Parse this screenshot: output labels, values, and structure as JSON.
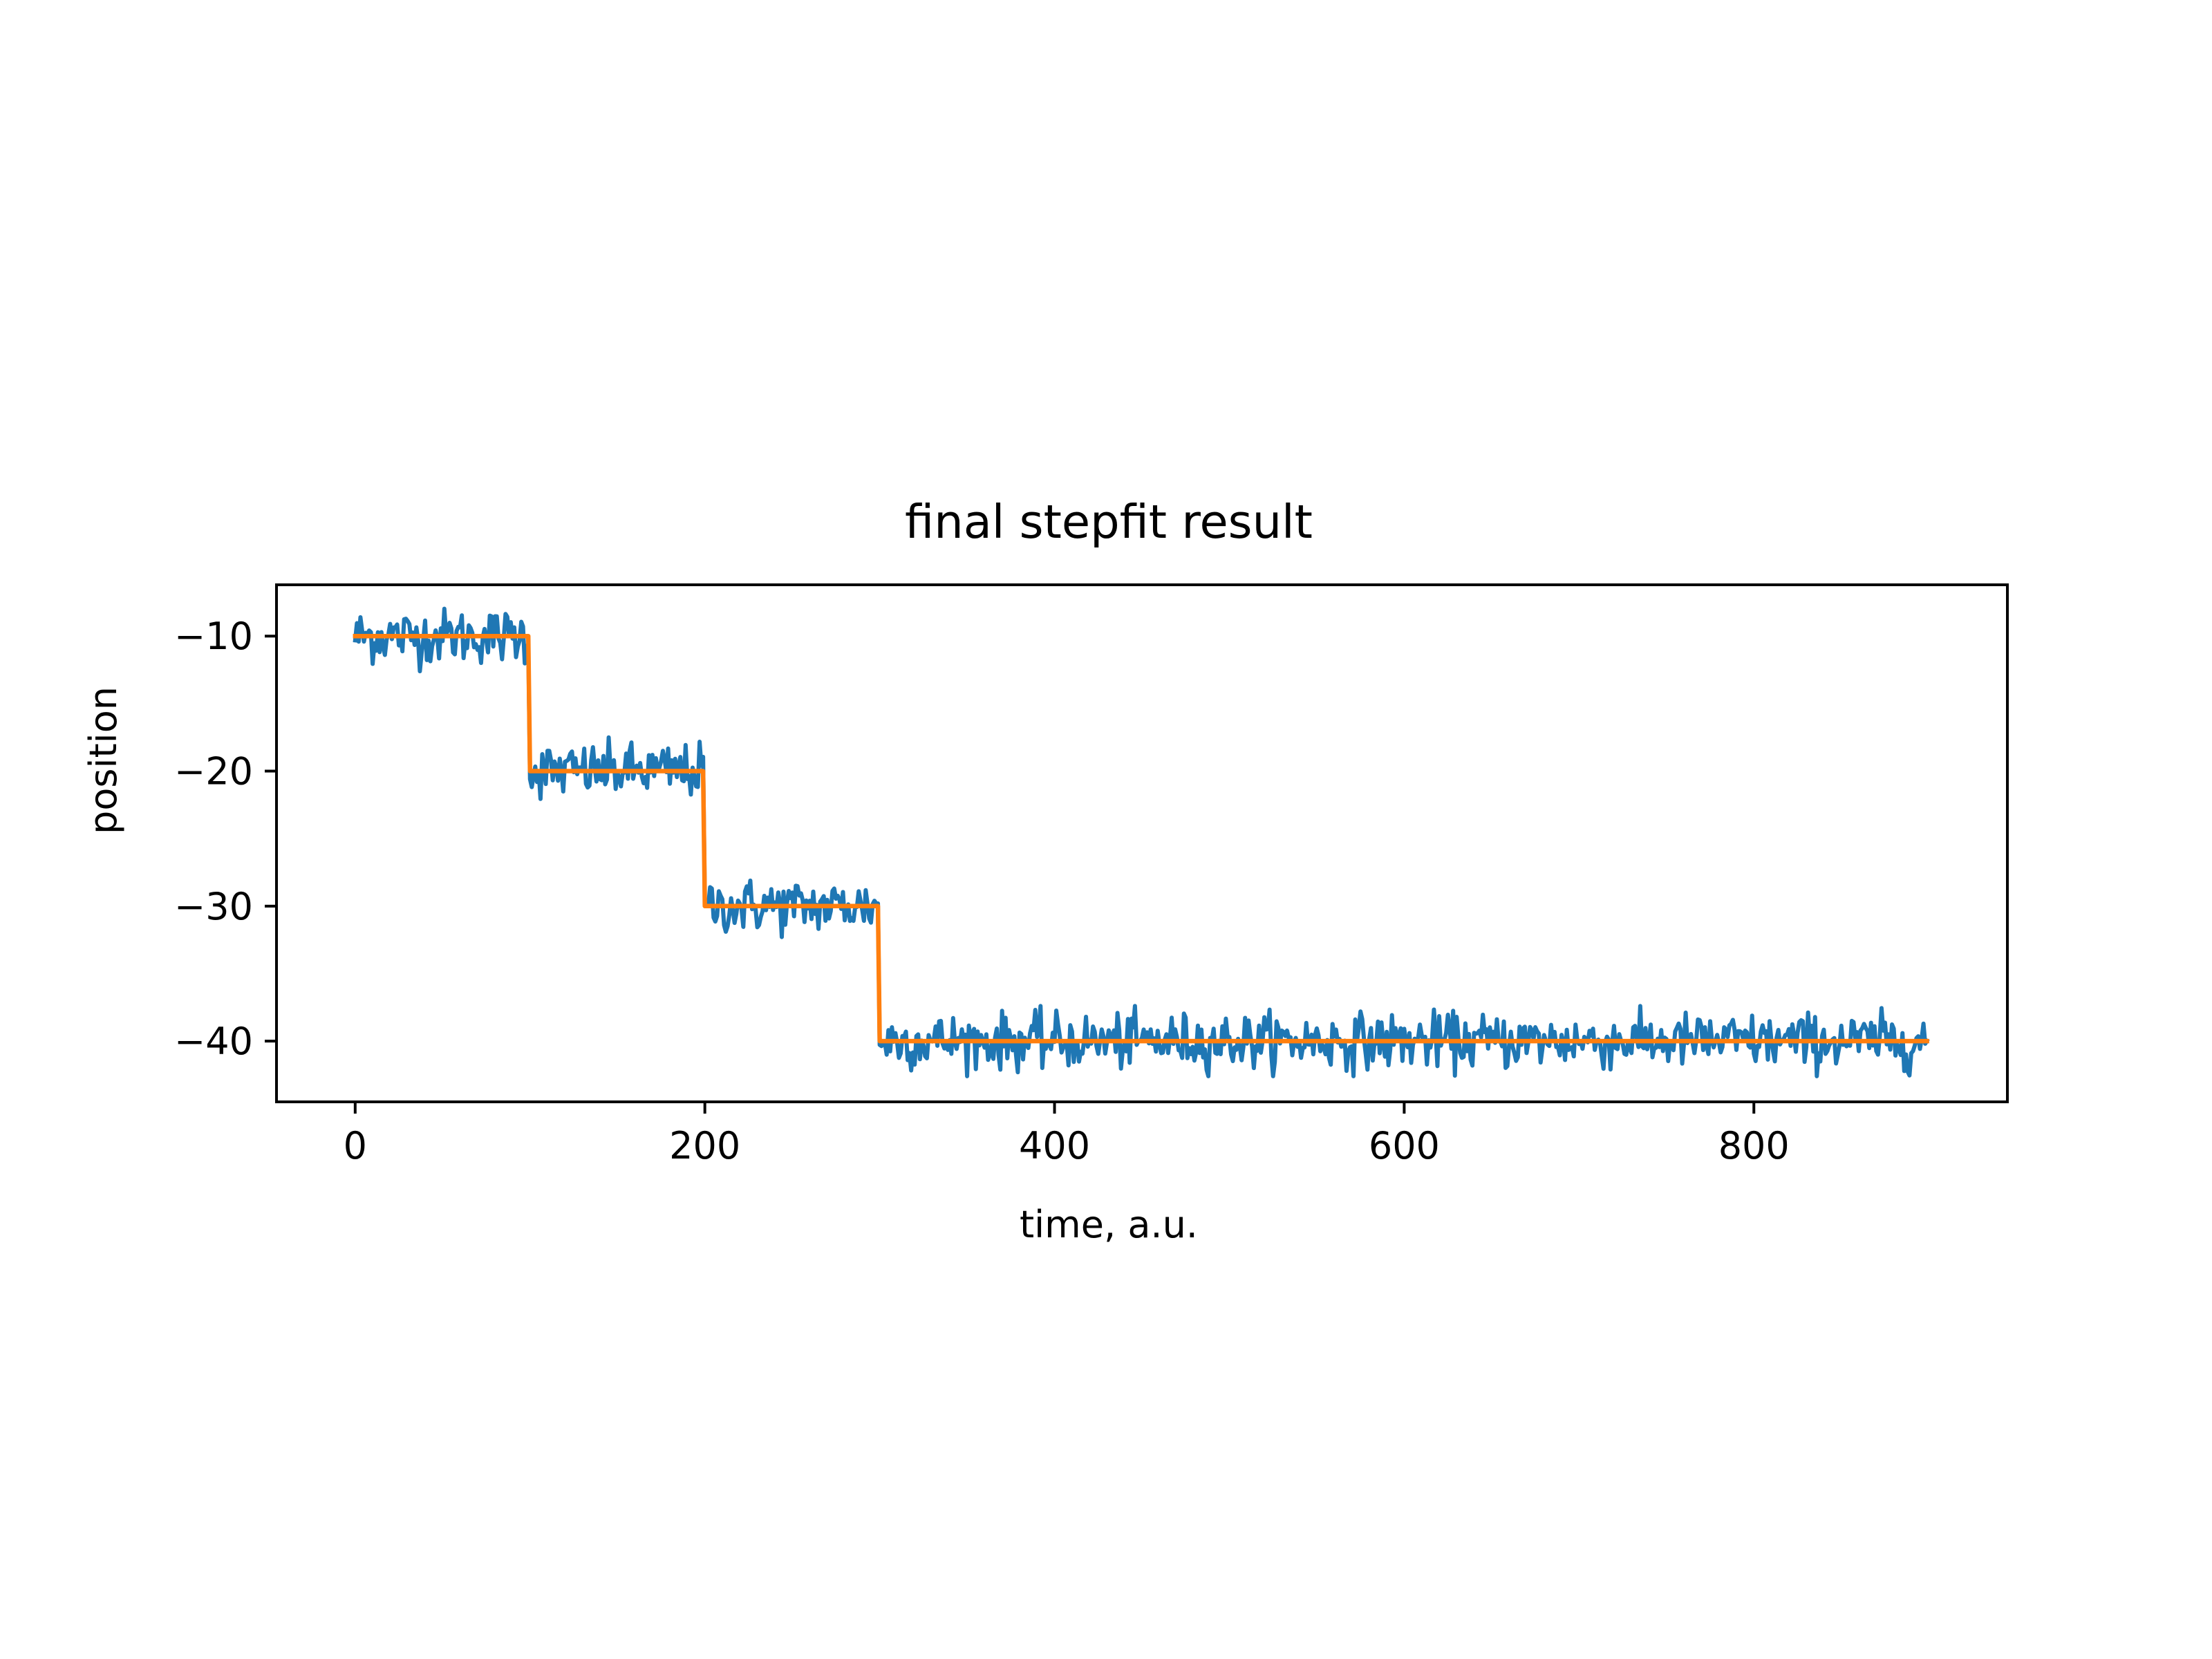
{
  "chart_data": {
    "type": "line",
    "title": "final stepfit result",
    "xlabel": "time, a.u.",
    "ylabel": "position",
    "xlim": [
      -45,
      945
    ],
    "ylim": [
      -44.5,
      -6.2
    ],
    "x_ticks": [
      0,
      200,
      400,
      600,
      800
    ],
    "x_tick_labels": [
      "0",
      "200",
      "400",
      "600",
      "800"
    ],
    "y_ticks": [
      -10,
      -20,
      -30,
      -40
    ],
    "y_tick_labels": [
      "−10",
      "−20",
      "−30",
      "−40"
    ],
    "grid": false,
    "legend": "none",
    "noise_amplitude": 2.0,
    "series": [
      {
        "kind": "noisy-trace",
        "color": "#1f77b4",
        "x_start": 0,
        "x_end": 899,
        "levels": [
          {
            "x_from": 0,
            "x_to": 99,
            "y": -10
          },
          {
            "x_from": 100,
            "x_to": 199,
            "y": -20
          },
          {
            "x_from": 200,
            "x_to": 299,
            "y": -30
          },
          {
            "x_from": 300,
            "x_to": 899,
            "y": -40
          }
        ]
      },
      {
        "kind": "step-fit",
        "color": "#ff7f0e",
        "x": [
          0,
          99,
          100,
          199,
          200,
          299,
          300,
          899
        ],
        "y": [
          -10,
          -10,
          -20,
          -20,
          -30,
          -30,
          -40,
          -40
        ]
      }
    ]
  }
}
